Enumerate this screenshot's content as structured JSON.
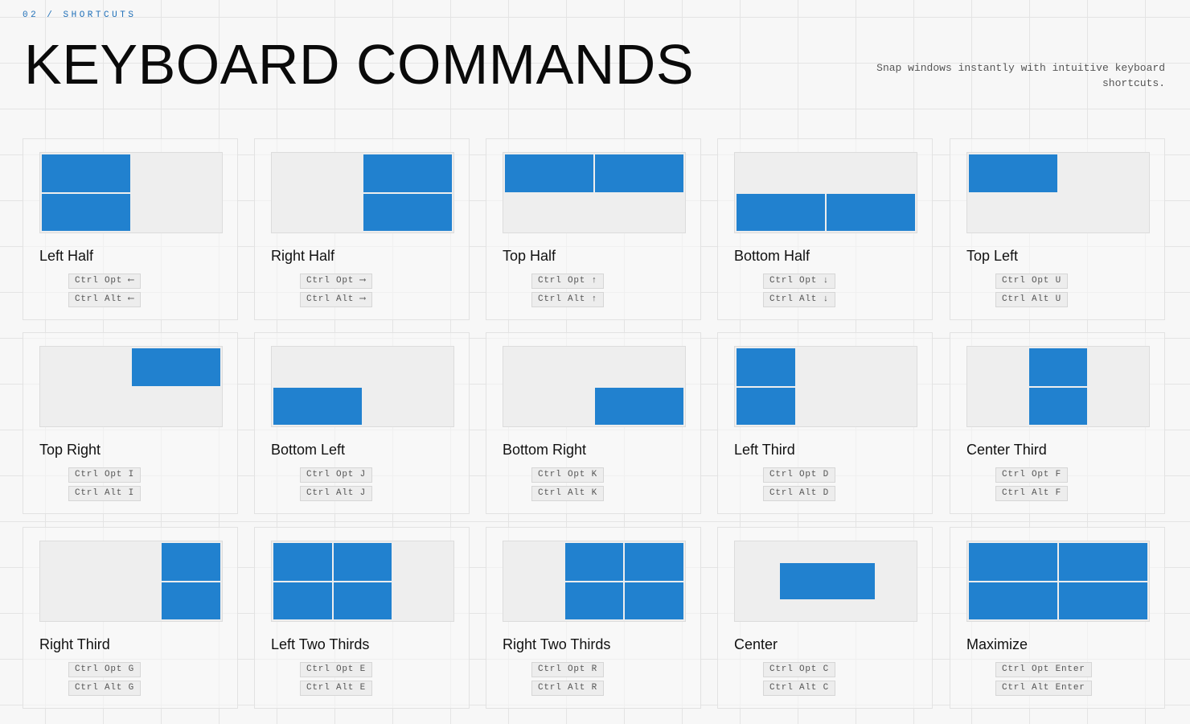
{
  "header": {
    "eyebrow": "02  /  SHORTCUTS",
    "title": "KEYBOARD COMMANDS",
    "subtitle": "Snap windows instantly with intuitive keyboard shortcuts."
  },
  "colors": {
    "accent": "#2181cf",
    "eyebrow": "#1f6fb8"
  },
  "commands": [
    {
      "name": "Left Half",
      "layout": "left-half",
      "keys": [
        "Ctrl Opt ⟵",
        "Ctrl Alt ⟵"
      ]
    },
    {
      "name": "Right Half",
      "layout": "right-half",
      "keys": [
        "Ctrl Opt ⟶",
        "Ctrl Alt ⟶"
      ]
    },
    {
      "name": "Top Half",
      "layout": "top-half",
      "keys": [
        "Ctrl Opt ↑",
        "Ctrl Alt ↑"
      ]
    },
    {
      "name": "Bottom Half",
      "layout": "bottom-half",
      "keys": [
        "Ctrl Opt ↓",
        "Ctrl Alt ↓"
      ]
    },
    {
      "name": "Top Left",
      "layout": "top-left",
      "keys": [
        "Ctrl Opt U",
        "Ctrl Alt U"
      ]
    },
    {
      "name": "Top Right",
      "layout": "top-right",
      "keys": [
        "Ctrl Opt I",
        "Ctrl Alt I"
      ]
    },
    {
      "name": "Bottom Left",
      "layout": "bottom-left",
      "keys": [
        "Ctrl Opt J",
        "Ctrl Alt J"
      ]
    },
    {
      "name": "Bottom Right",
      "layout": "bottom-right",
      "keys": [
        "Ctrl Opt K",
        "Ctrl Alt K"
      ]
    },
    {
      "name": "Left Third",
      "layout": "left-third",
      "keys": [
        "Ctrl Opt D",
        "Ctrl Alt D"
      ]
    },
    {
      "name": "Center Third",
      "layout": "center-third",
      "keys": [
        "Ctrl Opt F",
        "Ctrl Alt F"
      ]
    },
    {
      "name": "Right Third",
      "layout": "right-third",
      "keys": [
        "Ctrl Opt G",
        "Ctrl Alt G"
      ]
    },
    {
      "name": "Left Two Thirds",
      "layout": "left-two-thirds",
      "keys": [
        "Ctrl Opt E",
        "Ctrl Alt E"
      ]
    },
    {
      "name": "Right Two Thirds",
      "layout": "right-two-thirds",
      "keys": [
        "Ctrl Opt R",
        "Ctrl Alt R"
      ]
    },
    {
      "name": "Center",
      "layout": "center",
      "keys": [
        "Ctrl Opt C",
        "Ctrl Alt C"
      ]
    },
    {
      "name": "Maximize",
      "layout": "maximize",
      "keys": [
        "Ctrl Opt Enter",
        "Ctrl Alt Enter"
      ]
    }
  ]
}
